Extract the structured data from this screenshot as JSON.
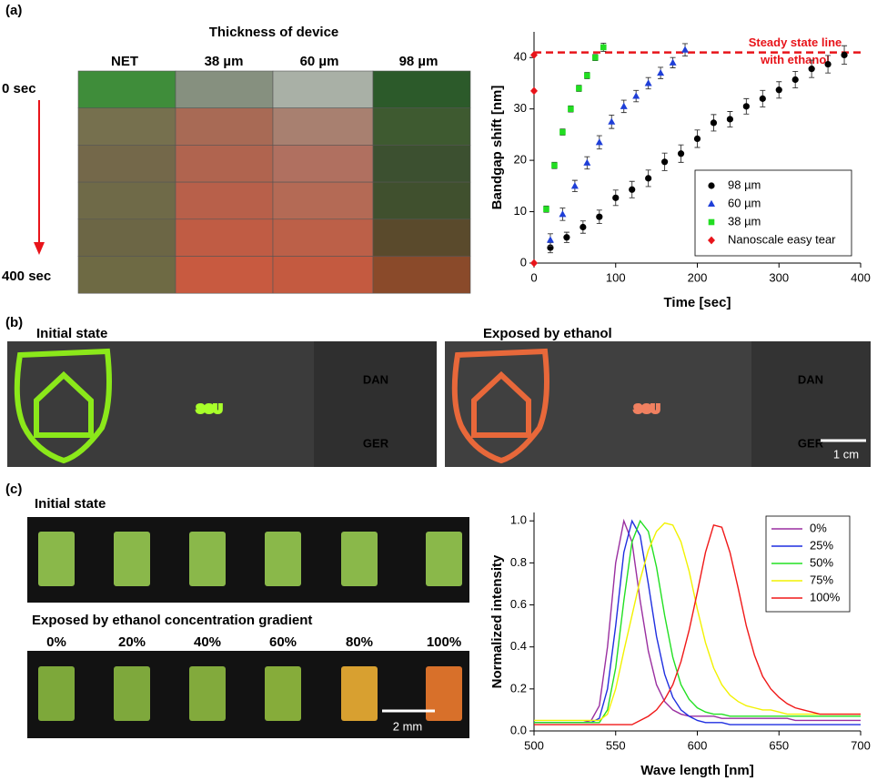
{
  "figure": {
    "panel_a": {
      "label": "(a)",
      "photo_title": "Thickness of device",
      "columns": [
        "NET",
        "38 µm",
        "60 µm",
        "98 µm"
      ],
      "time_start": "0 sec",
      "time_end": "400 sec"
    },
    "panel_b": {
      "label": "(b)",
      "initial_title": "Initial state",
      "exposed_title": "Exposed by ethanol",
      "initial_words": [
        "SGU",
        "DAN",
        "GER"
      ],
      "exposed_words": [
        "SGU",
        "DAN",
        "GER"
      ],
      "scale_bar": "1 cm"
    },
    "panel_c": {
      "label": "(c)",
      "initial_title": "Initial state",
      "exposed_title": "Exposed by ethanol concentration gradient",
      "concentrations": [
        "0%",
        "20%",
        "40%",
        "60%",
        "80%",
        "100%"
      ],
      "scale_bar": "2 mm"
    }
  },
  "chart_data": [
    {
      "type": "scatter",
      "xlabel": "Time [sec]",
      "ylabel": "Bandgap shift [nm]",
      "xlim": [
        0,
        400
      ],
      "xticks": [
        0,
        100,
        200,
        300,
        400
      ],
      "ylim": [
        0,
        45
      ],
      "yticks": [
        0,
        10,
        20,
        30,
        40
      ],
      "legend": "lower right",
      "reference_line": {
        "value": 41,
        "label": [
          "Steady state line",
          "with ethanol"
        ],
        "color": "#e8141a",
        "style": "dashed"
      },
      "series": [
        {
          "name": "98 µm",
          "color": "#000000",
          "marker": "circle",
          "x": [
            20,
            40,
            60,
            80,
            100,
            120,
            140,
            160,
            180,
            200,
            220,
            240,
            260,
            280,
            300,
            320,
            340,
            360,
            380
          ],
          "values": [
            3,
            5,
            7,
            9,
            12.7,
            14.3,
            16.5,
            19.7,
            21.3,
            24.2,
            27.3,
            28,
            30.5,
            32,
            33.7,
            35.7,
            37.8,
            38.7,
            40.5
          ],
          "errors": [
            1,
            1,
            1.2,
            1.3,
            1.5,
            1.6,
            1.6,
            1.7,
            1.7,
            1.7,
            1.6,
            1.5,
            1.5,
            1.6,
            1.6,
            1.6,
            1.7,
            1.7,
            1.8
          ]
        },
        {
          "name": "60 µm",
          "color": "#1f3fd8",
          "marker": "triangle",
          "x": [
            20,
            35,
            50,
            65,
            80,
            95,
            110,
            125,
            140,
            155,
            170,
            185
          ],
          "values": [
            4.5,
            9.5,
            15,
            19.5,
            23.5,
            27.5,
            30.5,
            32.5,
            35,
            37,
            39,
            41.5
          ],
          "errors": [
            1.2,
            1.2,
            1.1,
            1.2,
            1.3,
            1.3,
            1.2,
            1.1,
            1.1,
            1.1,
            1,
            1.2
          ]
        },
        {
          "name": "38 µm",
          "color": "#22dd22",
          "marker": "square",
          "x": [
            15,
            25,
            35,
            45,
            55,
            65,
            75,
            85
          ],
          "values": [
            10.5,
            19,
            25.5,
            30,
            34,
            36.5,
            40,
            42
          ],
          "errors": [
            0.6,
            0.6,
            0.6,
            0.6,
            0.6,
            0.6,
            0.6,
            0.8
          ]
        },
        {
          "name": "Nanoscale easy tear",
          "color": "#e8141a",
          "marker": "diamond",
          "x": [
            0,
            0,
            0
          ],
          "values": [
            0,
            33.5,
            40.5
          ]
        }
      ]
    },
    {
      "type": "line",
      "xlabel": "Wave length [nm]",
      "ylabel": "Normalized intensity",
      "xlim": [
        500,
        700
      ],
      "xticks": [
        500,
        550,
        600,
        650,
        700
      ],
      "ylim": [
        0,
        1.04
      ],
      "yticks": [
        {
          "value": 0,
          "label": "0.0"
        },
        0.2,
        0.4,
        0.6,
        0.8,
        {
          "value": 1,
          "label": "1.0"
        }
      ],
      "legend": "upper right",
      "x": [
        500,
        505,
        510,
        515,
        520,
        525,
        530,
        535,
        540,
        545,
        550,
        555,
        560,
        565,
        570,
        575,
        580,
        585,
        590,
        595,
        600,
        605,
        610,
        615,
        620,
        625,
        630,
        635,
        640,
        645,
        650,
        655,
        660,
        665,
        670,
        675,
        680,
        685,
        690,
        695,
        700
      ],
      "series": [
        {
          "name": "0%",
          "color": "#9a2fa0",
          "values": [
            0.04,
            0.04,
            0.04,
            0.04,
            0.04,
            0.04,
            0.04,
            0.05,
            0.12,
            0.4,
            0.8,
            1.0,
            0.9,
            0.62,
            0.38,
            0.22,
            0.14,
            0.1,
            0.08,
            0.07,
            0.07,
            0.07,
            0.07,
            0.06,
            0.06,
            0.06,
            0.06,
            0.06,
            0.06,
            0.06,
            0.06,
            0.06,
            0.05,
            0.05,
            0.05,
            0.05,
            0.05,
            0.05,
            0.05,
            0.05,
            0.05
          ]
        },
        {
          "name": "25%",
          "color": "#1f2fe0",
          "values": [
            0.04,
            0.04,
            0.04,
            0.04,
            0.04,
            0.04,
            0.04,
            0.04,
            0.06,
            0.2,
            0.5,
            0.85,
            1.0,
            0.93,
            0.7,
            0.45,
            0.27,
            0.16,
            0.1,
            0.07,
            0.05,
            0.04,
            0.04,
            0.04,
            0.03,
            0.03,
            0.03,
            0.03,
            0.03,
            0.03,
            0.03,
            0.03,
            0.03,
            0.03,
            0.03,
            0.03,
            0.03,
            0.03,
            0.03,
            0.03,
            0.03
          ]
        },
        {
          "name": "50%",
          "color": "#22e022",
          "values": [
            0.04,
            0.04,
            0.04,
            0.04,
            0.04,
            0.04,
            0.04,
            0.04,
            0.04,
            0.1,
            0.3,
            0.62,
            0.9,
            1.0,
            0.95,
            0.78,
            0.55,
            0.35,
            0.22,
            0.15,
            0.11,
            0.09,
            0.08,
            0.08,
            0.07,
            0.07,
            0.07,
            0.07,
            0.07,
            0.07,
            0.07,
            0.07,
            0.07,
            0.07,
            0.07,
            0.07,
            0.07,
            0.07,
            0.07,
            0.07,
            0.07
          ]
        },
        {
          "name": "75%",
          "color": "#f2f200",
          "values": [
            0.05,
            0.05,
            0.05,
            0.05,
            0.05,
            0.05,
            0.05,
            0.05,
            0.05,
            0.08,
            0.2,
            0.38,
            0.55,
            0.72,
            0.86,
            0.95,
            0.99,
            0.98,
            0.9,
            0.76,
            0.58,
            0.42,
            0.3,
            0.22,
            0.17,
            0.14,
            0.12,
            0.11,
            0.1,
            0.1,
            0.09,
            0.08,
            0.08,
            0.08,
            0.08,
            0.08,
            0.08,
            0.08,
            0.08,
            0.08,
            0.08
          ]
        },
        {
          "name": "100%",
          "color": "#f01818",
          "values": [
            0.03,
            0.03,
            0.03,
            0.03,
            0.03,
            0.03,
            0.03,
            0.03,
            0.03,
            0.03,
            0.03,
            0.03,
            0.03,
            0.05,
            0.07,
            0.1,
            0.15,
            0.22,
            0.33,
            0.48,
            0.66,
            0.85,
            0.98,
            0.97,
            0.85,
            0.68,
            0.5,
            0.36,
            0.26,
            0.2,
            0.16,
            0.13,
            0.11,
            0.1,
            0.09,
            0.08,
            0.08,
            0.08,
            0.08,
            0.08,
            0.08
          ]
        }
      ]
    }
  ]
}
